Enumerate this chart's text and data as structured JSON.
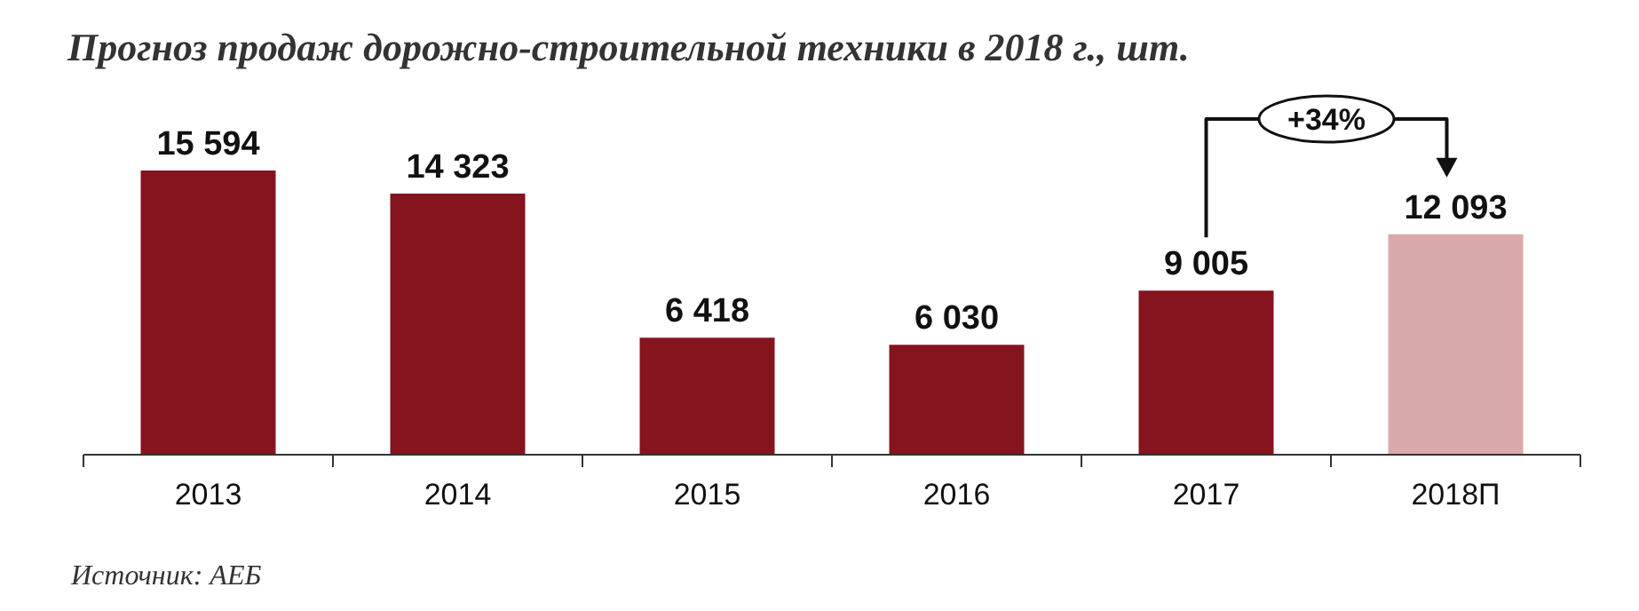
{
  "chart_data": {
    "type": "bar",
    "title": "Прогноз продаж дорожно-строительной техники в 2018 г., шт.",
    "categories": [
      "2013",
      "2014",
      "2015",
      "2016",
      "2017",
      "2018П"
    ],
    "values": [
      15594,
      14323,
      6418,
      6030,
      9005,
      12093
    ],
    "colors": [
      "#85141f",
      "#85141f",
      "#85141f",
      "#85141f",
      "#85141f",
      "#d9a9a9"
    ],
    "value_labels": [
      "15 594",
      "14 323",
      "6 418",
      "6 030",
      "9 005",
      "12 093"
    ],
    "annotations": [
      "+34%",
      "Источник: АЕБ"
    ]
  }
}
